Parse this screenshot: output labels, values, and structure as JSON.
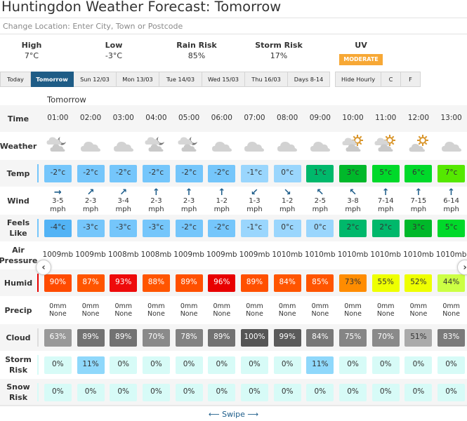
{
  "header": {
    "title": "Huntingdon Weather Forecast: Tomorrow",
    "location_placeholder": "Change Location: Enter City, Town or Postcode"
  },
  "summary": {
    "high": {
      "label": "High",
      "value": "7°C"
    },
    "low": {
      "label": "Low",
      "value": "-3°C"
    },
    "rain": {
      "label": "Rain Risk",
      "value": "85%"
    },
    "storm": {
      "label": "Storm Risk",
      "value": "17%"
    },
    "uv": {
      "label": "UV",
      "value": "MODERATE",
      "color": "#f7a835"
    }
  },
  "tabs": [
    {
      "label": "Today",
      "active": false
    },
    {
      "label": "Tomorrow",
      "active": true
    },
    {
      "label": "Sun 12/03",
      "active": false
    },
    {
      "label": "Mon 13/03",
      "active": false
    },
    {
      "label": "Tue 14/03",
      "active": false
    },
    {
      "label": "Wed 15/03",
      "active": false
    },
    {
      "label": "Thu 16/03",
      "active": false
    },
    {
      "label": "Days 8-14",
      "active": false
    }
  ],
  "options": [
    {
      "label": "Hide Hourly"
    },
    {
      "label": "C"
    },
    {
      "label": "F"
    }
  ],
  "day_label": "Tomorrow",
  "row_labels": {
    "time": "Time",
    "weather": "Weather",
    "temp": "Temp",
    "wind": "Wind",
    "feels_line1": "Feels",
    "feels_line2": "Like",
    "pressure_line1": "Air",
    "pressure_line2": "Pressure",
    "humid": "Humid",
    "precip": "Precip",
    "cloud": "Cloud",
    "storm_line1": "Storm",
    "storm_line2": "Risk",
    "snow_line1": "Snow",
    "snow_line2": "Risk"
  },
  "hours": [
    {
      "time": "01:00",
      "icon": "cloud-moon",
      "temp": "-2°c",
      "temp_bg": "#75c6fb",
      "wind_dir": "→",
      "wind": "3-5",
      "wind_unit": "mph",
      "feels": "-4°c",
      "feels_bg": "#52b3f5",
      "pressure": "1009mb",
      "humid": "90%",
      "humid_bg": "#ff4b00",
      "humid_fg": "#fff",
      "precip": "0mm",
      "precip_type": "None",
      "cloud": "63%",
      "cloud_bg": "#999999",
      "cloud_fg": "#fff",
      "storm": "0%",
      "storm_bg": "#d7fbf7",
      "snow": "0%",
      "snow_bg": "#d7fbf7"
    },
    {
      "time": "02:00",
      "icon": "cloud",
      "temp": "-2°c",
      "temp_bg": "#75c6fb",
      "wind_dir": "↗",
      "wind": "2-3",
      "wind_unit": "mph",
      "feels": "-3°c",
      "feels_bg": "#75c6fb",
      "pressure": "1009mb",
      "humid": "87%",
      "humid_bg": "#ff5500",
      "humid_fg": "#fff",
      "precip": "0mm",
      "precip_type": "None",
      "cloud": "89%",
      "cloud_bg": "#727272",
      "cloud_fg": "#fff",
      "storm": "11%",
      "storm_bg": "#8fd8fb",
      "snow": "0%",
      "snow_bg": "#d7fbf7"
    },
    {
      "time": "03:00",
      "icon": "cloud",
      "temp": "-2°c",
      "temp_bg": "#75c6fb",
      "wind_dir": "↗",
      "wind": "3-4",
      "wind_unit": "mph",
      "feels": "-3°c",
      "feels_bg": "#75c6fb",
      "pressure": "1008mb",
      "humid": "93%",
      "humid_bg": "#ee0b0b",
      "humid_fg": "#fff",
      "precip": "0mm",
      "precip_type": "None",
      "cloud": "89%",
      "cloud_bg": "#727272",
      "cloud_fg": "#fff",
      "storm": "0%",
      "storm_bg": "#d7fbf7",
      "snow": "0%",
      "snow_bg": "#d7fbf7"
    },
    {
      "time": "04:00",
      "icon": "cloud-moon",
      "temp": "-2°c",
      "temp_bg": "#75c6fb",
      "wind_dir": "↑",
      "wind": "2-3",
      "wind_unit": "mph",
      "feels": "-3°c",
      "feels_bg": "#75c6fb",
      "pressure": "1008mb",
      "humid": "88%",
      "humid_bg": "#ff5500",
      "humid_fg": "#fff",
      "precip": "0mm",
      "precip_type": "None",
      "cloud": "70%",
      "cloud_bg": "#8a8a8a",
      "cloud_fg": "#fff",
      "storm": "0%",
      "storm_bg": "#d7fbf7",
      "snow": "0%",
      "snow_bg": "#d7fbf7"
    },
    {
      "time": "05:00",
      "icon": "cloud-moon",
      "temp": "-2°c",
      "temp_bg": "#75c6fb",
      "wind_dir": "↑",
      "wind": "2-3",
      "wind_unit": "mph",
      "feels": "-2°c",
      "feels_bg": "#75c6fb",
      "pressure": "1009mb",
      "humid": "89%",
      "humid_bg": "#ff5000",
      "humid_fg": "#fff",
      "precip": "0mm",
      "precip_type": "None",
      "cloud": "78%",
      "cloud_bg": "#828282",
      "cloud_fg": "#fff",
      "storm": "0%",
      "storm_bg": "#d7fbf7",
      "snow": "0%",
      "snow_bg": "#d7fbf7"
    },
    {
      "time": "06:00",
      "icon": "cloud",
      "temp": "-2°c",
      "temp_bg": "#75c6fb",
      "wind_dir": "↑",
      "wind": "1-2",
      "wind_unit": "mph",
      "feels": "-2°c",
      "feels_bg": "#75c6fb",
      "pressure": "1009mb",
      "humid": "96%",
      "humid_bg": "#e80000",
      "humid_fg": "#fff",
      "precip": "0mm",
      "precip_type": "None",
      "cloud": "89%",
      "cloud_bg": "#727272",
      "cloud_fg": "#fff",
      "storm": "0%",
      "storm_bg": "#d7fbf7",
      "snow": "0%",
      "snow_bg": "#d7fbf7"
    },
    {
      "time": "07:00",
      "icon": "cloud",
      "temp": "-1°c",
      "temp_bg": "#9ad6fd",
      "wind_dir": "↙",
      "wind": "1-3",
      "wind_unit": "mph",
      "feels": "-1°c",
      "feels_bg": "#9ad6fd",
      "pressure": "1009mb",
      "humid": "89%",
      "humid_bg": "#ff5000",
      "humid_fg": "#fff",
      "precip": "0mm",
      "precip_type": "None",
      "cloud": "100%",
      "cloud_bg": "#555555",
      "cloud_fg": "#fff",
      "storm": "0%",
      "storm_bg": "#d7fbf7",
      "snow": "0%",
      "snow_bg": "#d7fbf7"
    },
    {
      "time": "08:00",
      "icon": "cloud",
      "temp": "0°c",
      "temp_bg": "#9ad6fd",
      "wind_dir": "↘",
      "wind": "1-2",
      "wind_unit": "mph",
      "feels": "0°c",
      "feels_bg": "#9ad6fd",
      "pressure": "1010mb",
      "humid": "84%",
      "humid_bg": "#ff5500",
      "humid_fg": "#fff",
      "precip": "0mm",
      "precip_type": "None",
      "cloud": "99%",
      "cloud_bg": "#5a5a5a",
      "cloud_fg": "#fff",
      "storm": "0%",
      "storm_bg": "#d7fbf7",
      "snow": "0%",
      "snow_bg": "#d7fbf7"
    },
    {
      "time": "09:00",
      "icon": "cloud",
      "temp": "1°c",
      "temp_bg": "#00b86b",
      "wind_dir": "↖",
      "wind": "2-5",
      "wind_unit": "mph",
      "feels": "0°c",
      "feels_bg": "#9ad6fd",
      "pressure": "1010mb",
      "humid": "85%",
      "humid_bg": "#ff5500",
      "humid_fg": "#fff",
      "precip": "0mm",
      "precip_type": "None",
      "cloud": "84%",
      "cloud_bg": "#787878",
      "cloud_fg": "#fff",
      "storm": "11%",
      "storm_bg": "#8fd8fb",
      "snow": "0%",
      "snow_bg": "#d7fbf7"
    },
    {
      "time": "10:00",
      "icon": "cloud-sun",
      "temp": "3°c",
      "temp_bg": "#00b82a",
      "wind_dir": "↖",
      "wind": "3-8",
      "wind_unit": "mph",
      "feels": "2°c",
      "feels_bg": "#00b86b",
      "pressure": "1010mb",
      "humid": "73%",
      "humid_bg": "#ff8c00",
      "humid_fg": "#333",
      "precip": "0mm",
      "precip_type": "None",
      "cloud": "75%",
      "cloud_bg": "#858585",
      "cloud_fg": "#fff",
      "storm": "0%",
      "storm_bg": "#d7fbf7",
      "snow": "0%",
      "snow_bg": "#d7fbf7"
    },
    {
      "time": "11:00",
      "icon": "cloud-sun",
      "temp": "5°c",
      "temp_bg": "#00d92a",
      "wind_dir": "↑",
      "wind": "7-14",
      "wind_unit": "mph",
      "feels": "2°c",
      "feels_bg": "#00b86b",
      "pressure": "1010mb",
      "humid": "55%",
      "humid_bg": "#eeff00",
      "humid_fg": "#333",
      "precip": "0mm",
      "precip_type": "None",
      "cloud": "70%",
      "cloud_bg": "#8a8a8a",
      "cloud_fg": "#fff",
      "storm": "0%",
      "storm_bg": "#d7fbf7",
      "snow": "0%",
      "snow_bg": "#d7fbf7"
    },
    {
      "time": "12:00",
      "icon": "sun-cloud",
      "temp": "6°c",
      "temp_bg": "#00d92a",
      "wind_dir": "↑",
      "wind": "7-15",
      "wind_unit": "mph",
      "feels": "3°c",
      "feels_bg": "#00b82a",
      "pressure": "1010mb",
      "humid": "52%",
      "humid_bg": "#eeff00",
      "humid_fg": "#333",
      "precip": "0mm",
      "precip_type": "None",
      "cloud": "51%",
      "cloud_bg": "#aaaaaa",
      "cloud_fg": "#333",
      "storm": "0%",
      "storm_bg": "#d7fbf7",
      "snow": "0%",
      "snow_bg": "#d7fbf7"
    },
    {
      "time": "13:00",
      "icon": "cloud",
      "temp": "7°c",
      "temp_bg": "#55e800",
      "wind_dir": "↑",
      "wind": "6-14",
      "wind_unit": "mph",
      "feels": "5°c",
      "feels_bg": "#00d92a",
      "pressure": "1010mb",
      "humid": "44%",
      "humid_bg": "#ccff44",
      "humid_fg": "#333",
      "precip": "0mm",
      "precip_type": "None",
      "cloud": "83%",
      "cloud_bg": "#7a7a7a",
      "cloud_fg": "#fff",
      "storm": "0%",
      "storm_bg": "#d7fbf7",
      "snow": "0%",
      "snow_bg": "#d7fbf7"
    }
  ],
  "nav": {
    "prev": "‹",
    "next": "›"
  },
  "footer": {
    "swipe": "Swipe"
  }
}
